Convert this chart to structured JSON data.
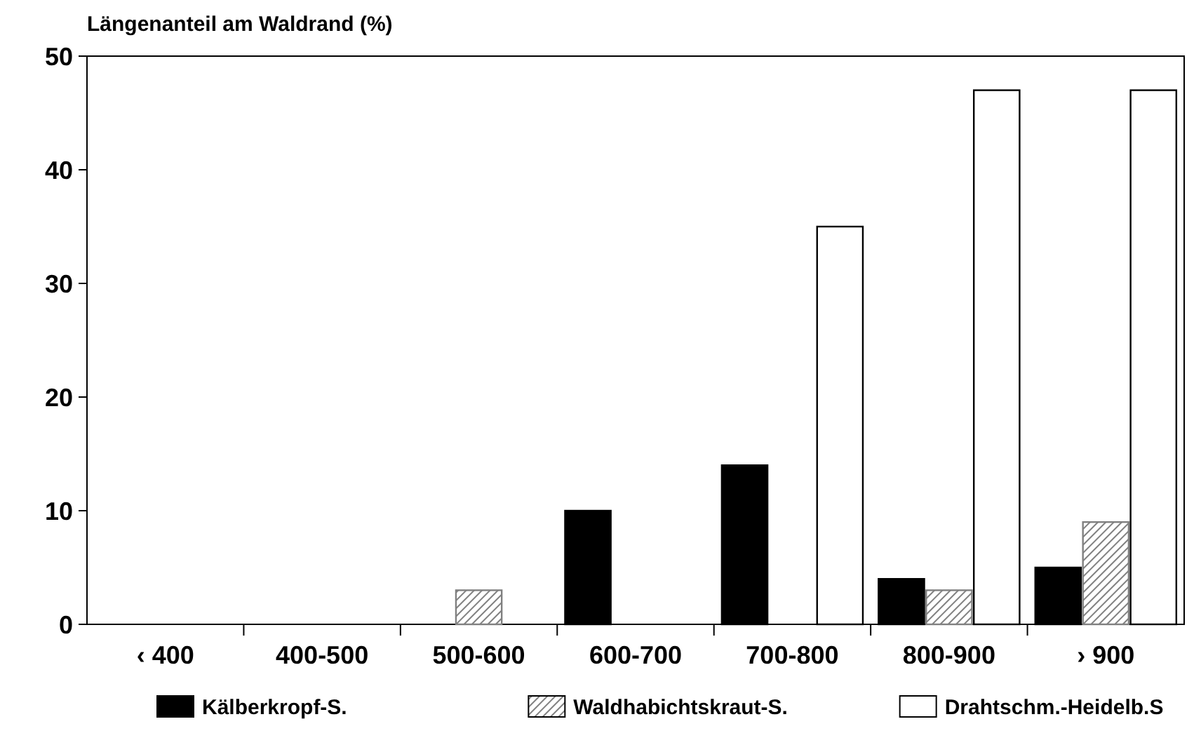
{
  "chart_data": {
    "type": "bar",
    "ylabel": "Längenanteil am Waldrand (%)",
    "categories": [
      "‹ 400",
      "400-500",
      "500-600",
      "600-700",
      "700-800",
      "800-900",
      "› 900"
    ],
    "series": [
      {
        "name": "Kälberkropf-S.",
        "color": "#000000",
        "values": [
          0,
          0,
          0,
          10,
          14,
          4,
          5
        ]
      },
      {
        "name": "Waldhabichtskraut-S.",
        "color": "#808080",
        "values": [
          0,
          0,
          3,
          0,
          0,
          3,
          9
        ]
      },
      {
        "name": "Drahtschm.-Heidelb.S",
        "color": "#ffffff",
        "values": [
          0,
          0,
          0,
          0,
          35,
          47,
          47
        ]
      }
    ],
    "ylim": [
      0,
      50
    ],
    "yticks": [
      0,
      10,
      20,
      30,
      40,
      50
    ],
    "grid": false,
    "legend": "bottom"
  }
}
